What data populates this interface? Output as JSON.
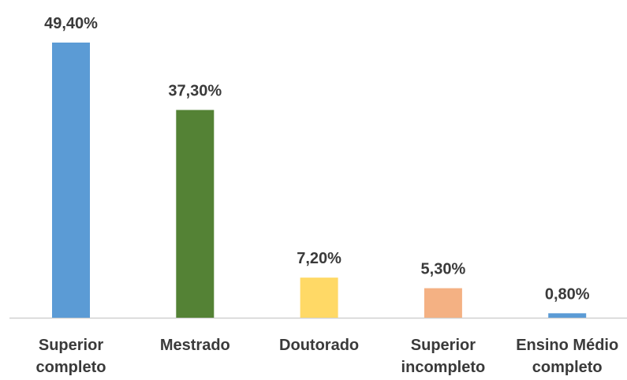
{
  "chart_data": {
    "type": "bar",
    "categories": [
      "Superior completo",
      "Mestrado",
      "Doutorado",
      "Superior incompleto",
      "Ensino Médio completo"
    ],
    "values": [
      49.4,
      37.3,
      7.2,
      5.3,
      0.8
    ],
    "value_labels": [
      "49,40%",
      "37,30%",
      "7,20%",
      "5,30%",
      "0,80%"
    ],
    "colors": [
      "#5b9bd5",
      "#548235",
      "#ffd966",
      "#f4b183",
      "#5b9bd5"
    ]
  }
}
